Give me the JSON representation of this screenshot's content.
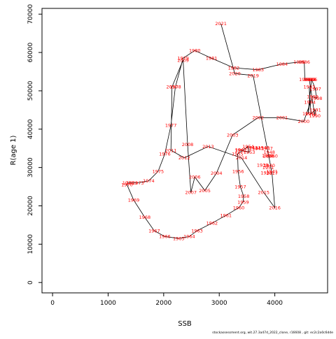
{
  "chart_data": {
    "type": "line",
    "xlabel": "SSB",
    "ylabel": "R(age 1)",
    "xlim": [
      -190,
      4950
    ],
    "ylim": [
      -2700,
      71500
    ],
    "xticks": [
      0,
      1000,
      2000,
      3000,
      4000
    ],
    "yticks": [
      0,
      10000,
      20000,
      30000,
      40000,
      50000,
      60000,
      70000
    ],
    "line_color": "#000000",
    "label_color": "#ff0000",
    "points": [
      {
        "year": "1952",
        "x": 3380,
        "y": 34500
      },
      {
        "year": "1953",
        "x": 3540,
        "y": 34000
      },
      {
        "year": "1954",
        "x": 3520,
        "y": 35500
      },
      {
        "year": "1955",
        "x": 3330,
        "y": 33500
      },
      {
        "year": "1956",
        "x": 3340,
        "y": 29000
      },
      {
        "year": "1957",
        "x": 3380,
        "y": 25000
      },
      {
        "year": "1958",
        "x": 3440,
        "y": 22500
      },
      {
        "year": "1959",
        "x": 3430,
        "y": 21000
      },
      {
        "year": "1960",
        "x": 3350,
        "y": 19500
      },
      {
        "year": "1961",
        "x": 3120,
        "y": 17500
      },
      {
        "year": "1962",
        "x": 2870,
        "y": 15500
      },
      {
        "year": "1963",
        "x": 2600,
        "y": 13500
      },
      {
        "year": "1964",
        "x": 2460,
        "y": 12000
      },
      {
        "year": "1965",
        "x": 2270,
        "y": 11500
      },
      {
        "year": "1966",
        "x": 2020,
        "y": 12000
      },
      {
        "year": "1967",
        "x": 1830,
        "y": 13500
      },
      {
        "year": "1968",
        "x": 1660,
        "y": 17000
      },
      {
        "year": "1969",
        "x": 1460,
        "y": 21500
      },
      {
        "year": "1970",
        "x": 1340,
        "y": 25500
      },
      {
        "year": "1971",
        "x": 1360,
        "y": 26000
      },
      {
        "year": "1972",
        "x": 1430,
        "y": 26000
      },
      {
        "year": "1973",
        "x": 1540,
        "y": 26000
      },
      {
        "year": "1974",
        "x": 1730,
        "y": 26500
      },
      {
        "year": "1975",
        "x": 1900,
        "y": 29000
      },
      {
        "year": "1976",
        "x": 2020,
        "y": 33500
      },
      {
        "year": "1977",
        "x": 2130,
        "y": 41000
      },
      {
        "year": "1978",
        "x": 2210,
        "y": 51000
      },
      {
        "year": "1979",
        "x": 2350,
        "y": 58500
      },
      {
        "year": "1980",
        "x": 2560,
        "y": 60500
      },
      {
        "year": "1981",
        "x": 2860,
        "y": 58500
      },
      {
        "year": "1982",
        "x": 3260,
        "y": 56000
      },
      {
        "year": "1983",
        "x": 3700,
        "y": 55500
      },
      {
        "year": "1984",
        "x": 4130,
        "y": 57000
      },
      {
        "year": "1985",
        "x": 4440,
        "y": 57500
      },
      {
        "year": "1986",
        "x": 4530,
        "y": 57500
      },
      {
        "year": "1987",
        "x": 4540,
        "y": 53000
      },
      {
        "year": "1988",
        "x": 4640,
        "y": 53000
      },
      {
        "year": "1989",
        "x": 4620,
        "y": 53000
      },
      {
        "year": "1990",
        "x": 4720,
        "y": 43500
      },
      {
        "year": "1991",
        "x": 4730,
        "y": 45000
      },
      {
        "year": "1992",
        "x": 4650,
        "y": 44000
      },
      {
        "year": "1993",
        "x": 4620,
        "y": 51000
      },
      {
        "year": "1994",
        "x": 4630,
        "y": 47000
      },
      {
        "year": "1995",
        "x": 4600,
        "y": 44000
      },
      {
        "year": "1996",
        "x": 4660,
        "y": 53000
      },
      {
        "year": "1997",
        "x": 4730,
        "y": 50500
      },
      {
        "year": "1998",
        "x": 4750,
        "y": 48000
      },
      {
        "year": "1999",
        "x": 4680,
        "y": 48500
      },
      {
        "year": "2000",
        "x": 4520,
        "y": 42000
      },
      {
        "year": "2001",
        "x": 4130,
        "y": 43000
      },
      {
        "year": "2002",
        "x": 3700,
        "y": 43000
      },
      {
        "year": "2003",
        "x": 3240,
        "y": 38500
      },
      {
        "year": "2004",
        "x": 2950,
        "y": 28500
      },
      {
        "year": "2005",
        "x": 2740,
        "y": 24000
      },
      {
        "year": "2006",
        "x": 2560,
        "y": 27500
      },
      {
        "year": "2007",
        "x": 2490,
        "y": 23500
      },
      {
        "year": "2008",
        "x": 2430,
        "y": 36000
      },
      {
        "year": "2009",
        "x": 2350,
        "y": 58000
      },
      {
        "year": "2010",
        "x": 2150,
        "y": 51000
      },
      {
        "year": "2011",
        "x": 2130,
        "y": 34500
      },
      {
        "year": "2012",
        "x": 2370,
        "y": 32500
      },
      {
        "year": "2013",
        "x": 2800,
        "y": 35500
      },
      {
        "year": "2014",
        "x": 3400,
        "y": 32500
      },
      {
        "year": "2015",
        "x": 3800,
        "y": 23500
      },
      {
        "year": "2016",
        "x": 4000,
        "y": 19500
      },
      {
        "year": "2017",
        "x": 3950,
        "y": 28500
      },
      {
        "year": "2018",
        "x": 3890,
        "y": 33000
      },
      {
        "year": "2019",
        "x": 3610,
        "y": 54000
      },
      {
        "year": "2020",
        "x": 3280,
        "y": 54500
      },
      {
        "year": "2021",
        "x": 3030,
        "y": 67500
      }
    ],
    "extra_labels": [
      {
        "text": "1942",
        "x": 3390,
        "y": 34600
      },
      {
        "text": "1943",
        "x": 3590,
        "y": 35200
      },
      {
        "text": "1944",
        "x": 3640,
        "y": 35000
      },
      {
        "text": "1945",
        "x": 3700,
        "y": 35000
      },
      {
        "text": "1946",
        "x": 3800,
        "y": 35200
      },
      {
        "text": "1947",
        "x": 3860,
        "y": 35000
      },
      {
        "text": "1948",
        "x": 3900,
        "y": 34000
      },
      {
        "text": "1949",
        "x": 3870,
        "y": 33100
      },
      {
        "text": "1950",
        "x": 3950,
        "y": 33000
      },
      {
        "text": "1951",
        "x": 3880,
        "y": 30000
      },
      {
        "text": "1939",
        "x": 3780,
        "y": 30600
      },
      {
        "text": "1940",
        "x": 3900,
        "y": 30500
      },
      {
        "text": "1941",
        "x": 3950,
        "y": 29000
      },
      {
        "text": "1938",
        "x": 3850,
        "y": 28600
      }
    ]
  },
  "footer_text": "stockassessment.org,  wit.27.3a47d_2022_clone,  r16608 ,  git: ec2c2a0c6dde"
}
